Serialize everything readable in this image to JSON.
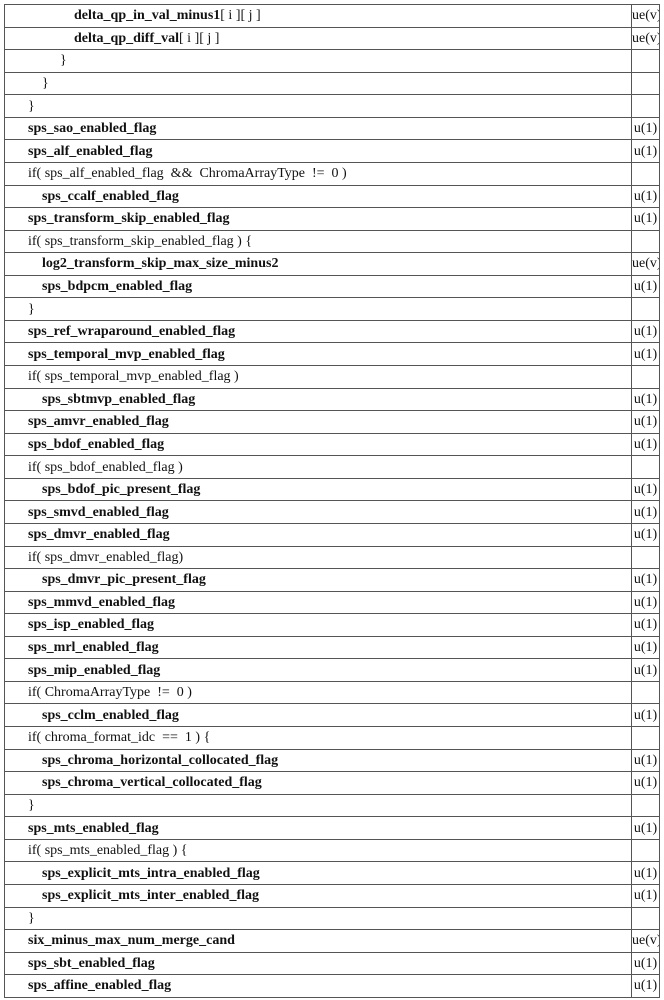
{
  "rows": [
    {
      "text": "delta_qp_in_val_minus1",
      "suffix": "[ i ][ j ]",
      "indent": 3,
      "bold": true,
      "desc": "ue(v)"
    },
    {
      "text": "delta_qp_diff_val",
      "suffix": "[ i ][ j ]",
      "indent": 3,
      "bold": true,
      "desc": "ue(v)"
    },
    {
      "text": "}",
      "indent": 2,
      "bold": false,
      "desc": ""
    },
    {
      "text": "}",
      "indent": 1,
      "bold": false,
      "desc": ""
    },
    {
      "text": "}",
      "indent": 0,
      "bold": false,
      "desc": ""
    },
    {
      "text": "sps_sao_enabled_flag",
      "indent": 0,
      "bold": true,
      "desc": "u(1)"
    },
    {
      "text": "sps_alf_enabled_flag",
      "indent": 0,
      "bold": true,
      "desc": "u(1)"
    },
    {
      "text": "if( sps_alf_enabled_flag  &&  ChromaArrayType  !=  0 )",
      "indent": 0,
      "bold": false,
      "desc": ""
    },
    {
      "text": "sps_ccalf_enabled_flag",
      "indent": 1,
      "bold": true,
      "desc": "u(1)"
    },
    {
      "text": "sps_transform_skip_enabled_flag",
      "indent": 0,
      "bold": true,
      "desc": "u(1)"
    },
    {
      "text": "if( sps_transform_skip_enabled_flag ) {",
      "indent": 0,
      "bold": false,
      "desc": ""
    },
    {
      "text": "log2_transform_skip_max_size_minus2",
      "indent": 1,
      "bold": true,
      "desc": "ue(v)"
    },
    {
      "text": "sps_bdpcm_enabled_flag",
      "indent": 1,
      "bold": true,
      "desc": "u(1)"
    },
    {
      "text": "}",
      "indent": 0,
      "bold": false,
      "desc": ""
    },
    {
      "text": "sps_ref_wraparound_enabled_flag",
      "indent": 0,
      "bold": true,
      "desc": "u(1)"
    },
    {
      "text": "sps_temporal_mvp_enabled_flag",
      "indent": 0,
      "bold": true,
      "desc": "u(1)"
    },
    {
      "text": "if( sps_temporal_mvp_enabled_flag )",
      "indent": 0,
      "bold": false,
      "desc": ""
    },
    {
      "text": "sps_sbtmvp_enabled_flag",
      "indent": 1,
      "bold": true,
      "desc": "u(1)"
    },
    {
      "text": "sps_amvr_enabled_flag",
      "indent": 0,
      "bold": true,
      "desc": "u(1)"
    },
    {
      "text": "sps_bdof_enabled_flag",
      "indent": 0,
      "bold": true,
      "desc": "u(1)"
    },
    {
      "text": "if( sps_bdof_enabled_flag )",
      "indent": 0,
      "bold": false,
      "desc": ""
    },
    {
      "text": "sps_bdof_pic_present_flag",
      "indent": 1,
      "bold": true,
      "desc": "u(1)"
    },
    {
      "text": "sps_smvd_enabled_flag",
      "indent": 0,
      "bold": true,
      "desc": "u(1)"
    },
    {
      "text": "sps_dmvr_enabled_flag",
      "indent": 0,
      "bold": true,
      "desc": "u(1)"
    },
    {
      "text": "if( sps_dmvr_enabled_flag)",
      "indent": 0,
      "bold": false,
      "desc": ""
    },
    {
      "text": "sps_dmvr_pic_present_flag",
      "indent": 1,
      "bold": true,
      "desc": "u(1)"
    },
    {
      "text": "sps_mmvd_enabled_flag",
      "indent": 0,
      "bold": true,
      "desc": "u(1)"
    },
    {
      "text": "sps_isp_enabled_flag",
      "indent": 0,
      "bold": true,
      "desc": "u(1)"
    },
    {
      "text": "sps_mrl_enabled_flag",
      "indent": 0,
      "bold": true,
      "desc": "u(1)"
    },
    {
      "text": "sps_mip_enabled_flag",
      "indent": 0,
      "bold": true,
      "desc": "u(1)"
    },
    {
      "text": "if( ChromaArrayType  !=  0 )",
      "indent": 0,
      "bold": false,
      "desc": ""
    },
    {
      "text": "sps_cclm_enabled_flag",
      "indent": 1,
      "bold": true,
      "desc": "u(1)"
    },
    {
      "text": "if( chroma_format_idc  ==  1 ) {",
      "indent": 0,
      "bold": false,
      "desc": ""
    },
    {
      "text": "sps_chroma_horizontal_collocated_flag",
      "indent": 1,
      "bold": true,
      "desc": "u(1)"
    },
    {
      "text": "sps_chroma_vertical_collocated_flag",
      "indent": 1,
      "bold": true,
      "desc": "u(1)"
    },
    {
      "text": "}",
      "indent": 0,
      "bold": false,
      "desc": ""
    },
    {
      "text": "sps_mts_enabled_flag",
      "indent": 0,
      "bold": true,
      "desc": "u(1)"
    },
    {
      "text": "if( sps_mts_enabled_flag ) {",
      "indent": 0,
      "bold": false,
      "desc": ""
    },
    {
      "text": "sps_explicit_mts_intra_enabled_flag",
      "indent": 1,
      "bold": true,
      "desc": "u(1)"
    },
    {
      "text": "sps_explicit_mts_inter_enabled_flag",
      "indent": 1,
      "bold": true,
      "desc": "u(1)"
    },
    {
      "text": "}",
      "indent": 0,
      "bold": false,
      "desc": ""
    },
    {
      "text": "six_minus_max_num_merge_cand",
      "indent": 0,
      "bold": true,
      "desc": "ue(v)"
    },
    {
      "text": "sps_sbt_enabled_flag",
      "indent": 0,
      "bold": true,
      "desc": "u(1)"
    },
    {
      "text": "sps_affine_enabled_flag",
      "indent": 0,
      "bold": true,
      "desc": "u(1)"
    }
  ]
}
